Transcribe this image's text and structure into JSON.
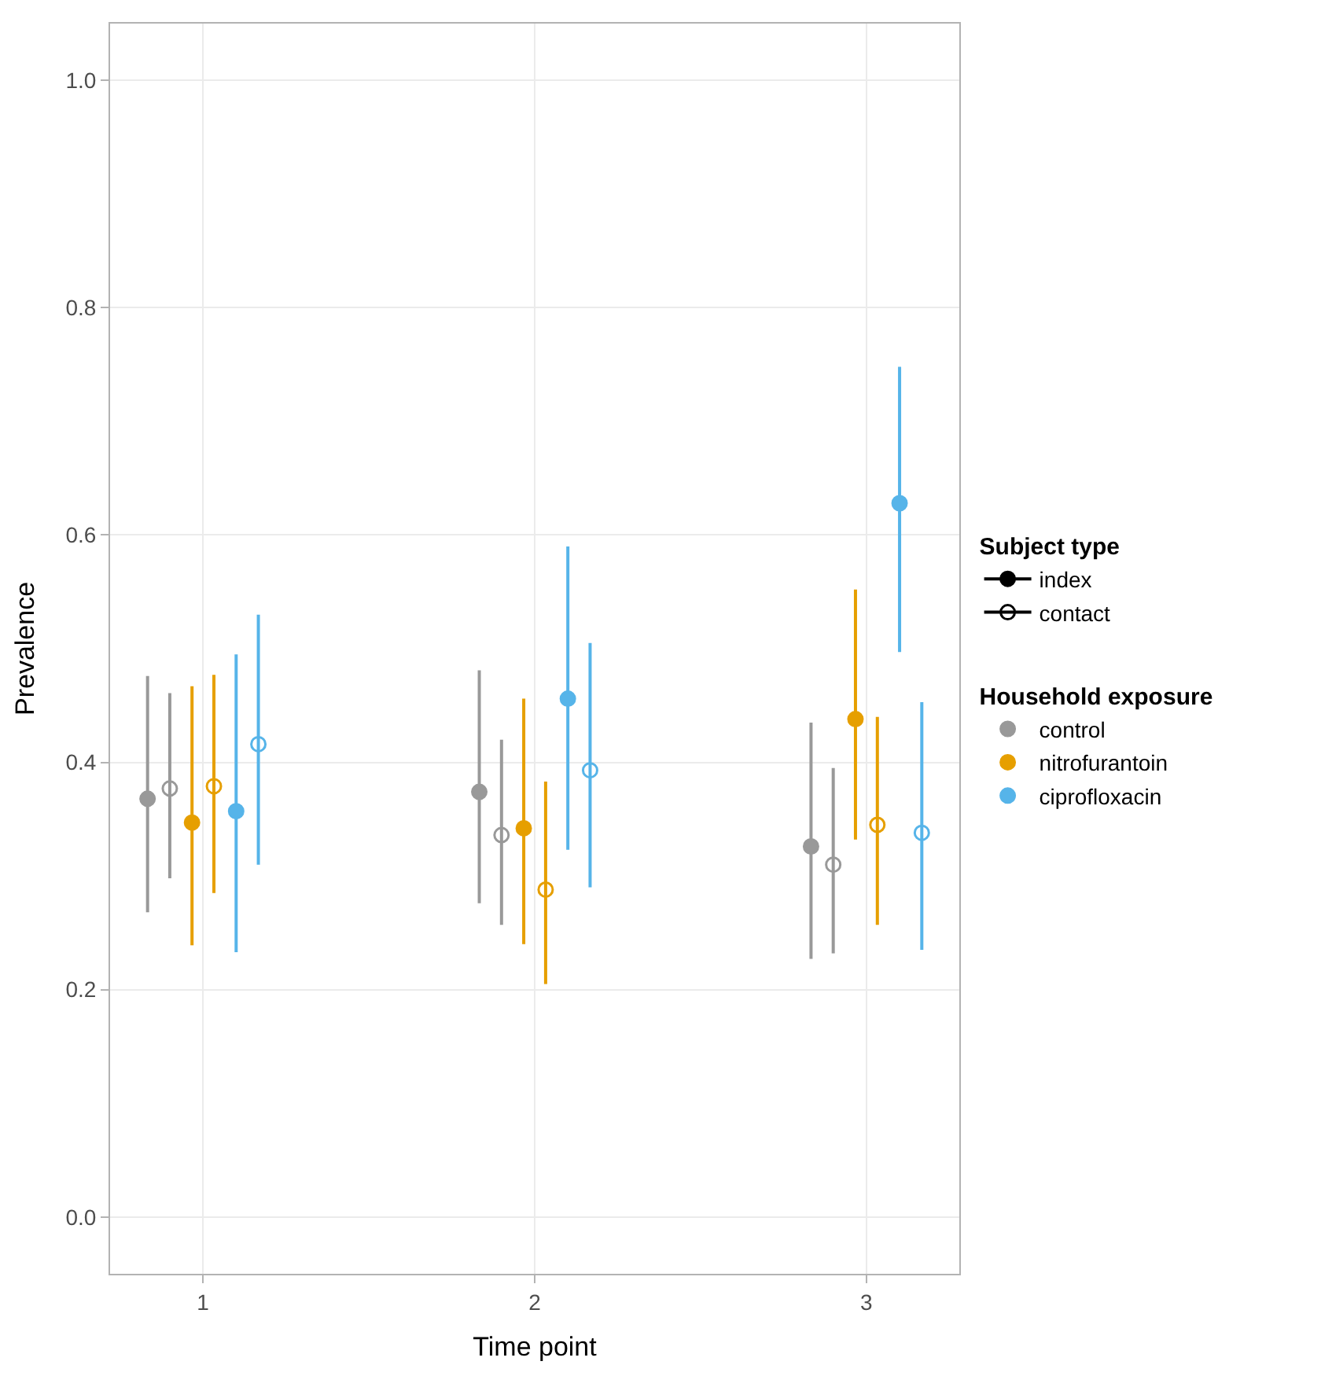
{
  "chart_data": {
    "type": "scatter",
    "xlabel": "Time point",
    "ylabel": "Prevalence",
    "xlim": [
      0.72,
      3.28
    ],
    "xticks": [
      1,
      2,
      3
    ],
    "ylim": [
      -0.05,
      1.05
    ],
    "yticks": [
      {
        "value": 0,
        "label": "0.0"
      },
      {
        "value": 0.2,
        "label": "0.2"
      },
      {
        "value": 0.4,
        "label": "0.4"
      },
      {
        "value": 0.6,
        "label": "0.6"
      },
      {
        "value": 0.8,
        "label": "0.8"
      },
      {
        "value": 1,
        "label": "1.0"
      }
    ],
    "grid": true,
    "legend": "right",
    "legend_title": [
      "Subject type",
      "Household exposure"
    ],
    "series": [
      {
        "name": "index",
        "color": "#000000",
        "type": "line",
        "marker": "circle",
        "x": [
          null
        ],
        "values": [
          null
        ]
      },
      {
        "name": "contact",
        "color": "#000000",
        "type": "line",
        "marker": "circle-open",
        "x": [
          null
        ],
        "values": [
          null
        ]
      },
      {
        "name": "control",
        "color": "#999999",
        "marker": "circle",
        "x": [
          0.833,
          1.833,
          2.833
        ],
        "values": [
          0.368,
          0.374,
          0.326
        ],
        "errors": [
          [
            0.268,
            0.476
          ],
          [
            0.276,
            0.481
          ],
          [
            0.227,
            0.435
          ]
        ]
      },
      {
        "color": "#999999",
        "marker": "circle-open",
        "x": [
          0.9,
          1.9,
          2.9
        ],
        "values": [
          0.377,
          0.336,
          0.31
        ],
        "errors": [
          [
            0.298,
            0.461
          ],
          [
            0.257,
            0.42
          ],
          [
            0.232,
            0.395
          ]
        ]
      },
      {
        "name": "nitrofurantoin",
        "color": "#e69f00",
        "marker": "circle",
        "x": [
          0.967,
          1.967,
          2.967
        ],
        "values": [
          0.347,
          0.342,
          0.438
        ],
        "errors": [
          [
            0.239,
            0.467
          ],
          [
            0.24,
            0.456
          ],
          [
            0.332,
            0.552
          ]
        ]
      },
      {
        "color": "#e69f00",
        "marker": "circle-open",
        "x": [
          1.033,
          2.033,
          3.033
        ],
        "values": [
          0.379,
          0.288,
          0.345
        ],
        "errors": [
          [
            0.285,
            0.477
          ],
          [
            0.205,
            0.383
          ],
          [
            0.257,
            0.44
          ]
        ]
      },
      {
        "name": "ciprofloxacin",
        "color": "#56b4e9",
        "marker": "circle",
        "x": [
          1.1,
          2.1,
          3.1
        ],
        "values": [
          0.357,
          0.456,
          0.628
        ],
        "errors": [
          [
            0.233,
            0.495
          ],
          [
            0.323,
            0.59
          ],
          [
            0.497,
            0.748
          ]
        ]
      },
      {
        "color": "#56b4e9",
        "marker": "circle-open",
        "x": [
          1.167,
          2.167,
          3.167
        ],
        "values": [
          0.416,
          0.393,
          0.338
        ],
        "errors": [
          [
            0.31,
            0.53
          ],
          [
            0.29,
            0.505
          ],
          [
            0.235,
            0.453
          ]
        ]
      }
    ]
  }
}
